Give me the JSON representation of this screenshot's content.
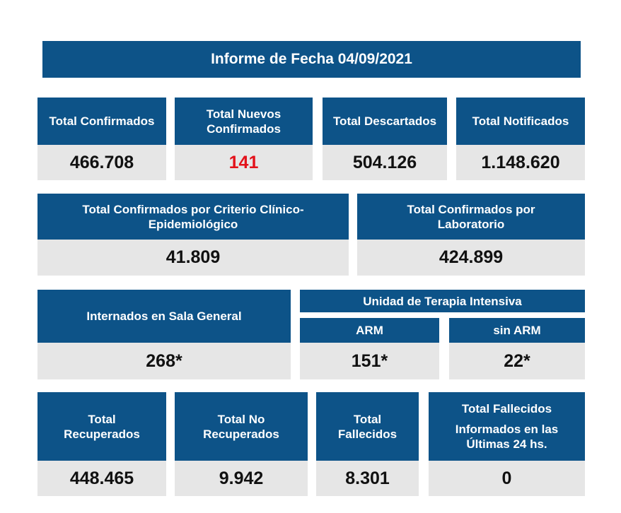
{
  "report_title": "Informe de Fecha 04/09/2021",
  "row1": {
    "confirmados": {
      "label": "Total Confirmados",
      "value": "466.708"
    },
    "nuevos": {
      "label": "Total Nuevos Confirmados",
      "value": "141"
    },
    "descartados": {
      "label": "Total Descartados",
      "value": "504.126"
    },
    "notificados": {
      "label": "Total Notificados",
      "value": "1.148.620"
    }
  },
  "row2": {
    "criterio": {
      "label": "Total Confirmados por Criterio Clínico-Epidemiológico",
      "value": "41.809"
    },
    "laboratorio": {
      "label": "Total Confirmados por Laboratorio",
      "value": "424.899"
    }
  },
  "row3": {
    "sala_general": {
      "label": "Internados en Sala General",
      "value": "268*"
    },
    "uti_title": "Unidad de Terapia Intensiva",
    "arm": {
      "label": "ARM",
      "value": "151*"
    },
    "sin_arm": {
      "label": "sin ARM",
      "value": "22*"
    }
  },
  "row4": {
    "recuperados": {
      "label": "Total Recuperados",
      "value": "448.465"
    },
    "no_recuperados": {
      "label": "Total No Recuperados",
      "value": "9.942"
    },
    "fallecidos": {
      "label": "Total Fallecidos",
      "value": "8.301"
    },
    "fallecidos_24": {
      "label_line1": "Total Fallecidos",
      "label_line2": "Informados en las Últimas 24 hs.",
      "value": "0"
    }
  },
  "colors": {
    "header_blue": "#0d5388",
    "value_gray": "#e6e6e6",
    "highlight_red": "#e3121b"
  }
}
